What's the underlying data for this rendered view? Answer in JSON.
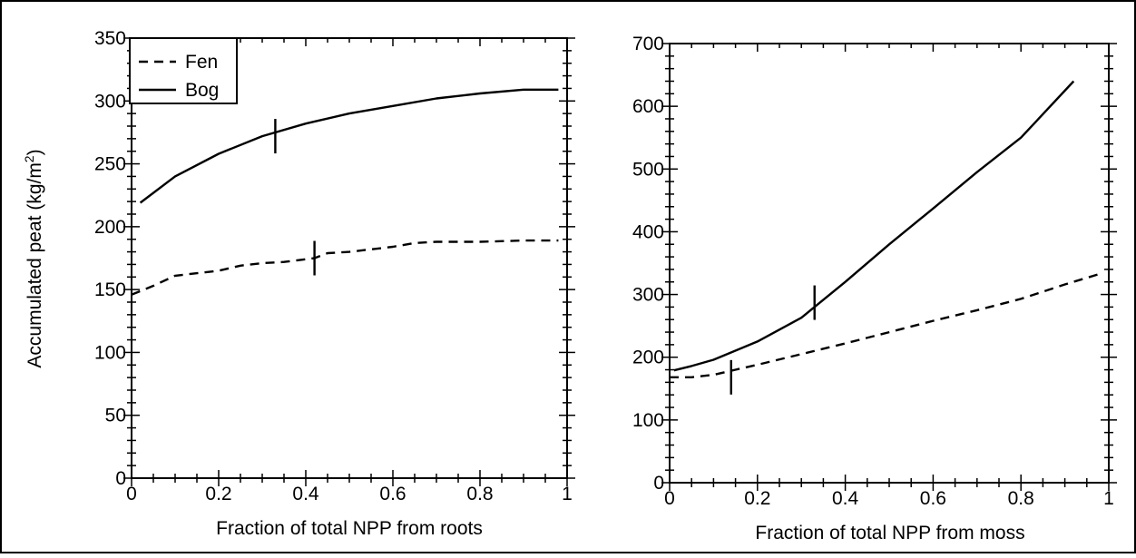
{
  "chart_data": [
    {
      "type": "line",
      "xlabel": "Fraction of total NPP from roots",
      "ylabel": "Accumulated peat (kg/m",
      "ylabel_sup": "2",
      "ylabel_close": ")",
      "xlim": [
        0,
        1
      ],
      "ylim": [
        0,
        350
      ],
      "xticks": [
        "0",
        "0.2",
        "0.4",
        "0.6",
        "0.8",
        "1"
      ],
      "xtick_values": [
        0,
        0.2,
        0.4,
        0.6,
        0.8,
        1
      ],
      "yticks": [
        "0",
        "50",
        "100",
        "150",
        "200",
        "250",
        "300",
        "350"
      ],
      "ytick_values": [
        0,
        50,
        100,
        150,
        200,
        250,
        300,
        350
      ],
      "legend": {
        "placement": "top-left",
        "entries": [
          "Fen",
          "Bog"
        ]
      },
      "series": [
        {
          "name": "Fen",
          "style": "dashed",
          "x": [
            0.0,
            0.05,
            0.1,
            0.2,
            0.25,
            0.3,
            0.35,
            0.42,
            0.45,
            0.5,
            0.55,
            0.6,
            0.65,
            0.7,
            0.8,
            0.9,
            0.98
          ],
          "y": [
            146,
            153,
            161,
            165,
            169,
            171,
            172,
            175,
            179,
            180,
            182,
            184,
            187,
            188,
            188,
            189,
            189
          ]
        },
        {
          "name": "Bog",
          "style": "solid",
          "x": [
            0.02,
            0.1,
            0.2,
            0.3,
            0.4,
            0.5,
            0.6,
            0.7,
            0.8,
            0.9,
            0.98
          ],
          "y": [
            219,
            240,
            258,
            272,
            282,
            290,
            296,
            302,
            306,
            309,
            309
          ]
        }
      ],
      "markers": [
        {
          "series": "Bog",
          "x": 0.33,
          "y": 272
        },
        {
          "series": "Fen",
          "x": 0.42,
          "y": 175
        }
      ]
    },
    {
      "type": "line",
      "xlabel": "Fraction of total NPP from moss",
      "ylabel": "",
      "xlim": [
        0,
        1
      ],
      "ylim": [
        0,
        700
      ],
      "xticks": [
        "0",
        "0.2",
        "0.4",
        "0.6",
        "0.8",
        "1"
      ],
      "xtick_values": [
        0,
        0.2,
        0.4,
        0.6,
        0.8,
        1
      ],
      "yticks": [
        "0",
        "100",
        "200",
        "300",
        "400",
        "500",
        "600",
        "700"
      ],
      "ytick_values": [
        0,
        100,
        200,
        300,
        400,
        500,
        600,
        700
      ],
      "series": [
        {
          "name": "Fen",
          "style": "dashed",
          "x": [
            0.0,
            0.05,
            0.1,
            0.15,
            0.2,
            0.3,
            0.4,
            0.5,
            0.6,
            0.7,
            0.8,
            0.9,
            0.98
          ],
          "y": [
            168,
            168,
            172,
            180,
            188,
            205,
            222,
            240,
            258,
            275,
            293,
            316,
            333
          ]
        },
        {
          "name": "Bog",
          "style": "solid",
          "x": [
            0.01,
            0.05,
            0.1,
            0.2,
            0.3,
            0.4,
            0.5,
            0.6,
            0.7,
            0.8,
            0.92
          ],
          "y": [
            179,
            186,
            196,
            225,
            263,
            320,
            380,
            437,
            495,
            550,
            640
          ]
        }
      ],
      "markers": [
        {
          "series": "Bog",
          "x": 0.33,
          "y": 287
        },
        {
          "series": "Fen",
          "x": 0.14,
          "y": 168
        }
      ]
    }
  ]
}
